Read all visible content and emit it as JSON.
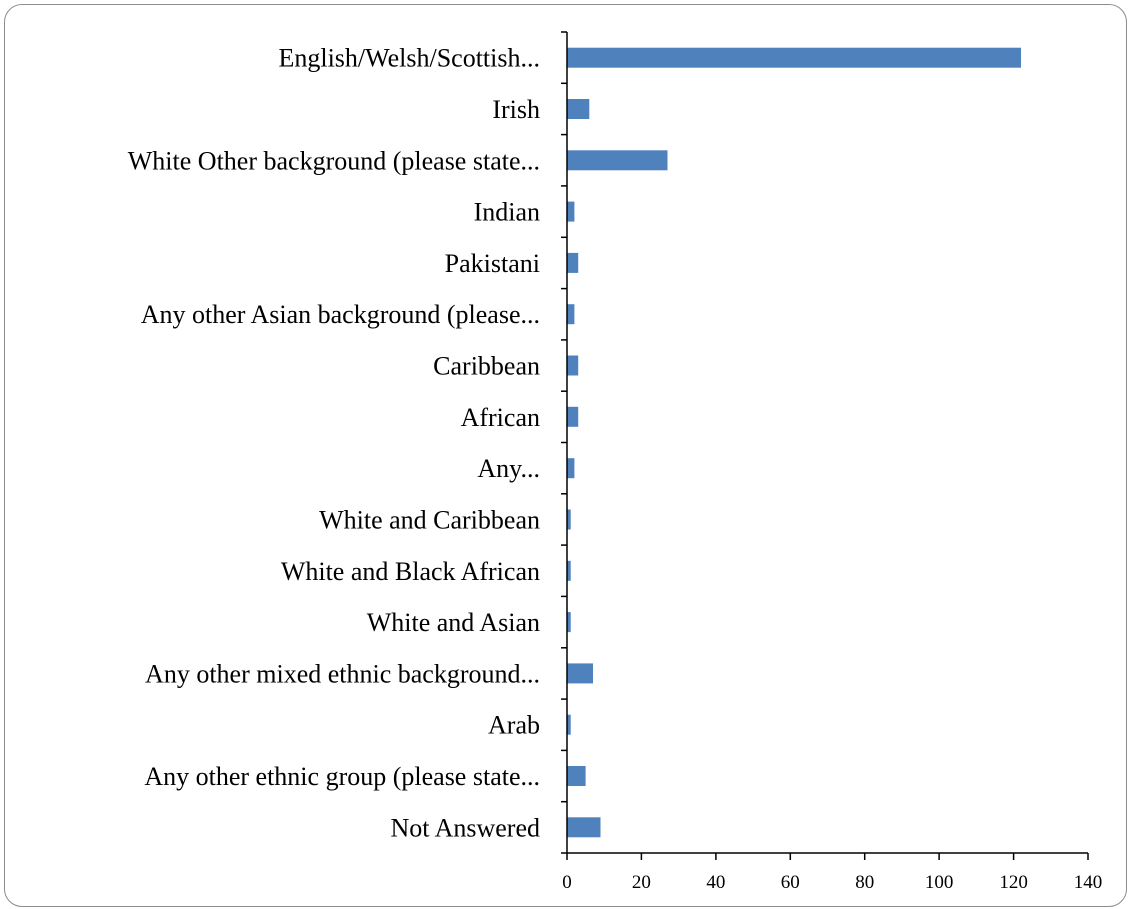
{
  "chart_data": {
    "type": "bar",
    "orientation": "horizontal",
    "title": "",
    "xlabel": "",
    "ylabel": "",
    "categories": [
      "English/Welsh/Scottish...",
      "Irish",
      "White Other background (please state...",
      "Indian",
      "Pakistani",
      "Any other Asian background (please...",
      "Caribbean",
      "African",
      "Any...",
      "White and Caribbean",
      "White and Black African",
      "White and Asian",
      "Any other mixed ethnic background...",
      "Arab",
      "Any other ethnic group (please state...",
      "Not Answered"
    ],
    "values": [
      122,
      6,
      27,
      2,
      3,
      2,
      3,
      3,
      2,
      1,
      1,
      1,
      7,
      1,
      5,
      9
    ],
    "xlim": [
      0,
      140
    ],
    "xticks": [
      "0",
      "20",
      "40",
      "60",
      "80",
      "100",
      "120",
      "140"
    ],
    "grid": false,
    "legend": "none",
    "bar_color": "#4f81bd"
  }
}
